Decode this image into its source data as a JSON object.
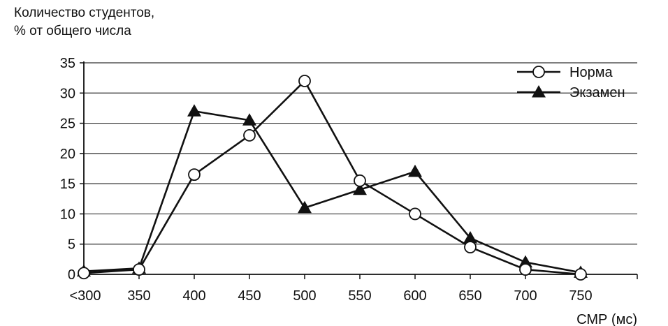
{
  "chart_data": {
    "type": "line",
    "title": "",
    "ylabel_lines": [
      "Количество студентов,",
      "% от общего числа"
    ],
    "xlabel": "СМР (мс)",
    "categories": [
      "<300",
      "350",
      "400",
      "450",
      "500",
      "550",
      "600",
      "650",
      "700",
      "750"
    ],
    "yticks": [
      0,
      5,
      10,
      15,
      20,
      25,
      30,
      35
    ],
    "ylim": [
      0,
      35
    ],
    "grid": true,
    "legend_position": "top-right",
    "series": [
      {
        "name": "Норма",
        "marker": "circle",
        "values": [
          0.2,
          0.8,
          16.5,
          23,
          32,
          15.5,
          10,
          4.5,
          0.8,
          0
        ]
      },
      {
        "name": "Экзамен",
        "marker": "triangle",
        "values": [
          0.5,
          1,
          27,
          25.5,
          11,
          14,
          17,
          6,
          2,
          0.3
        ]
      }
    ]
  }
}
